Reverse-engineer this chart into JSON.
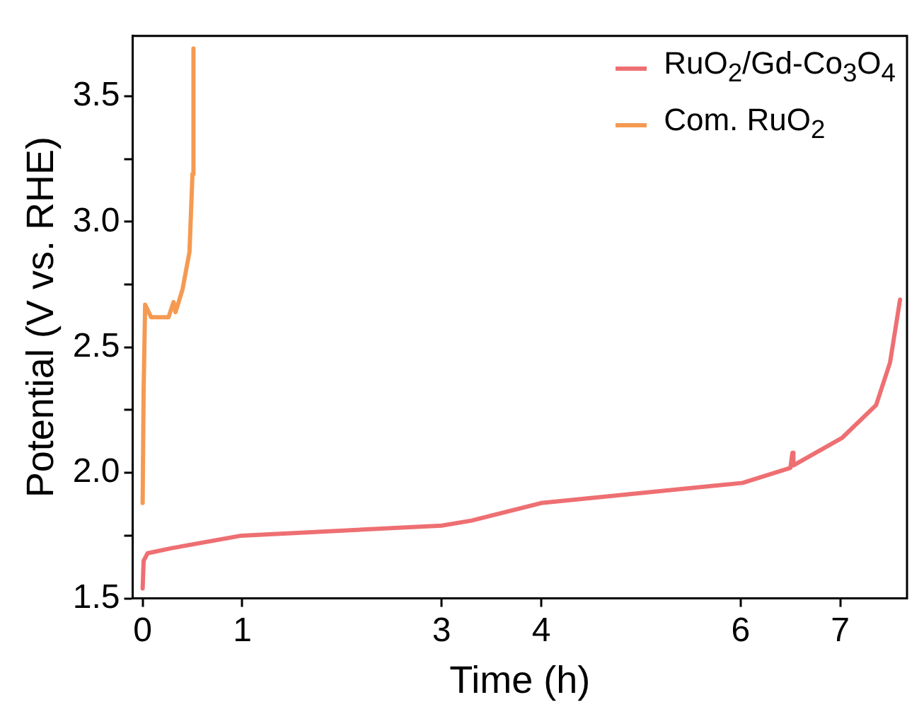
{
  "chart_data": {
    "type": "line",
    "xlabel": "Time (h)",
    "ylabel": "Potential (V vs. RHE)",
    "xlim": [
      -0.1,
      7.67
    ],
    "ylim": [
      1.5,
      3.74
    ],
    "xticks": [
      0,
      1,
      3,
      4,
      6,
      7
    ],
    "yticks": [
      {
        "value": 1.5,
        "label": "1.5"
      },
      {
        "value": 1.75,
        "label": null
      },
      {
        "value": 2,
        "label": "2.0"
      },
      {
        "value": 2.25,
        "label": null
      },
      {
        "value": 2.5,
        "label": "2.5"
      },
      {
        "value": 2.75,
        "label": null
      },
      {
        "value": 3,
        "label": "3.0"
      },
      {
        "value": 3.25,
        "label": null
      },
      {
        "value": 3.5,
        "label": "3.5"
      }
    ],
    "grid": false,
    "legend": "top right",
    "marker": "none",
    "line_style": "solid",
    "series": [
      {
        "name": "RuO$_{2}$/Gd-Co$_{3}$O$_{4}$",
        "color": "#ee6f72",
        "x": [
          0,
          0.01,
          0.05,
          0.29,
          0.99,
          3.0,
          3.3,
          4.0,
          6.02,
          6.5,
          6.52,
          6.53,
          7.02,
          7.36,
          7.5,
          7.6
        ],
        "values": [
          1.54,
          1.65,
          1.68,
          1.7,
          1.75,
          1.79,
          1.81,
          1.88,
          1.96,
          2.02,
          2.08,
          2.03,
          2.14,
          2.27,
          2.44,
          2.69
        ]
      },
      {
        "name": "Com. RuO$_{2}$",
        "color": "#f59a52",
        "x": [
          0,
          0.01,
          0.025,
          0.085,
          0.26,
          0.31,
          0.33,
          0.4,
          0.47,
          0.5,
          0.51
        ],
        "values": [
          1.88,
          2.33,
          2.67,
          2.62,
          2.62,
          2.68,
          2.64,
          2.73,
          2.88,
          3.19,
          3.69
        ]
      }
    ]
  }
}
